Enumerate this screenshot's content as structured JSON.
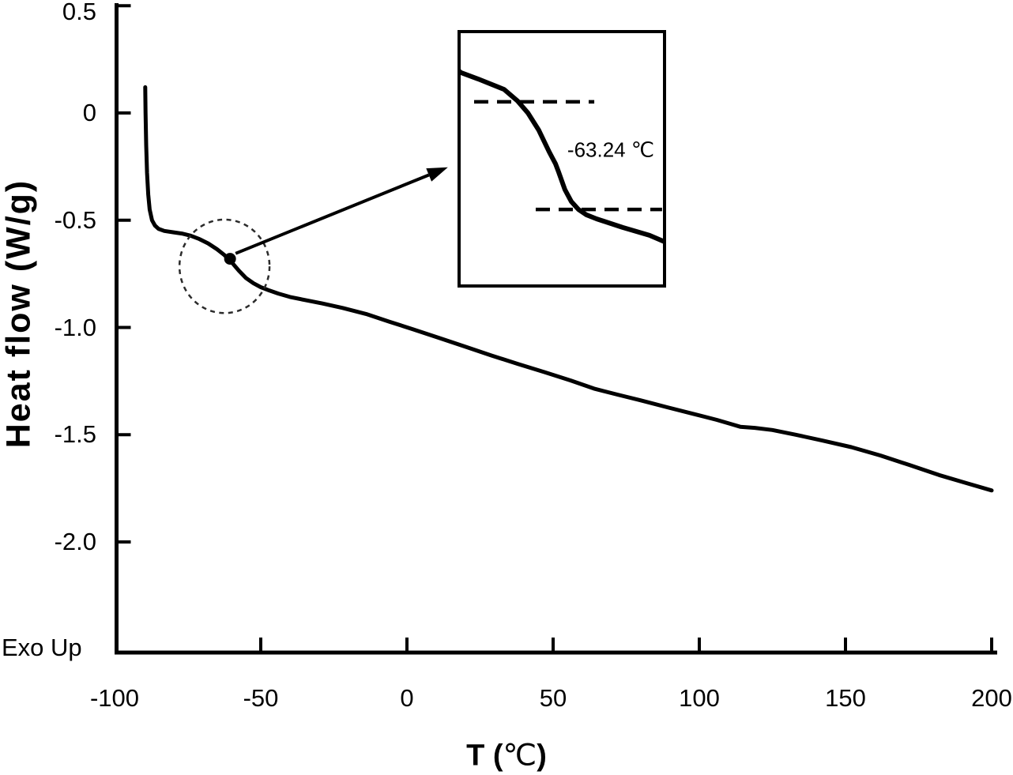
{
  "chart_data": {
    "type": "line",
    "xlabel": "T (℃)",
    "xlabel_parts": [
      "T (",
      "℃",
      ")"
    ],
    "ylabel": "Heat flow (W/g)",
    "orientation_note": "Exo Up",
    "grid": false,
    "legend": false,
    "xlim": [
      -100.5,
      201
    ],
    "ylim": [
      -2.52,
      0.52
    ],
    "x_ticks": [
      -50,
      0,
      50,
      100,
      150,
      200
    ],
    "x_tick_labels": [
      "-100",
      "-50",
      "0",
      "50",
      "100",
      "150",
      "200"
    ],
    "x_tick_label_positions": [
      -100,
      -50,
      0,
      50,
      100,
      150,
      200
    ],
    "y_ticks": [
      0.5,
      0,
      -0.5,
      -1.0,
      -1.5,
      -2.0
    ],
    "y_tick_labels": [
      "0.5",
      "0",
      "-0.5",
      "-1.0",
      "-1.5",
      "-2.0"
    ],
    "series": [
      {
        "points": [
          [
            -89.5,
            0.12
          ],
          [
            -89.4,
            0.0
          ],
          [
            -89.2,
            -0.15
          ],
          [
            -88.9,
            -0.28
          ],
          [
            -88.5,
            -0.38
          ],
          [
            -88.0,
            -0.45
          ],
          [
            -87.2,
            -0.5
          ],
          [
            -86.2,
            -0.525
          ],
          [
            -85.0,
            -0.54
          ],
          [
            -83.0,
            -0.55
          ],
          [
            -80.0,
            -0.556
          ],
          [
            -77.0,
            -0.562
          ],
          [
            -74.0,
            -0.572
          ],
          [
            -71.0,
            -0.588
          ],
          [
            -68.0,
            -0.608
          ],
          [
            -65.0,
            -0.635
          ],
          [
            -62.5,
            -0.662
          ],
          [
            -60.0,
            -0.695
          ],
          [
            -57.5,
            -0.735
          ],
          [
            -55.0,
            -0.77
          ],
          [
            -52.5,
            -0.794
          ],
          [
            -50.0,
            -0.812
          ],
          [
            -47.0,
            -0.828
          ],
          [
            -44.0,
            -0.842
          ],
          [
            -40.0,
            -0.858
          ],
          [
            -35.0,
            -0.872
          ],
          [
            -29.0,
            -0.888
          ],
          [
            -22.0,
            -0.909
          ],
          [
            -14.0,
            -0.937
          ],
          [
            -6.0,
            -0.973
          ],
          [
            2.0,
            -1.008
          ],
          [
            11.0,
            -1.049
          ],
          [
            20.0,
            -1.09
          ],
          [
            29.0,
            -1.131
          ],
          [
            38.0,
            -1.17
          ],
          [
            47.0,
            -1.208
          ],
          [
            56.0,
            -1.247
          ],
          [
            64.0,
            -1.285
          ],
          [
            72.0,
            -1.313
          ],
          [
            80.0,
            -1.34
          ],
          [
            89.0,
            -1.372
          ],
          [
            98.0,
            -1.403
          ],
          [
            106.0,
            -1.431
          ],
          [
            110.5,
            -1.449
          ],
          [
            114.0,
            -1.463
          ],
          [
            119.0,
            -1.468
          ],
          [
            125.0,
            -1.478
          ],
          [
            133.0,
            -1.5
          ],
          [
            142.0,
            -1.527
          ],
          [
            152.0,
            -1.558
          ],
          [
            162.0,
            -1.597
          ],
          [
            172.0,
            -1.642
          ],
          [
            182.0,
            -1.688
          ],
          [
            191.0,
            -1.724
          ],
          [
            200.0,
            -1.76
          ]
        ]
      }
    ],
    "glass_transition": {
      "label": "-63.24 ℃",
      "marker_point": [
        -60.5,
        -0.68
      ],
      "circle": {
        "center": [
          -62.4,
          -0.715
        ],
        "rx": 15.4,
        "ry": 0.218
      },
      "arrow": {
        "from": [
          -58.6,
          -0.655
        ],
        "to": [
          14.0,
          -0.253
        ]
      }
    },
    "inset": {
      "label": "-63.24 ℃",
      "curve_points_norm": [
        [
          0.0,
          0.155
        ],
        [
          0.008,
          0.161
        ],
        [
          0.092,
          0.186
        ],
        [
          0.219,
          0.227
        ],
        [
          0.285,
          0.273
        ],
        [
          0.335,
          0.32
        ],
        [
          0.388,
          0.388
        ],
        [
          0.438,
          0.472
        ],
        [
          0.469,
          0.519
        ],
        [
          0.485,
          0.553
        ],
        [
          0.515,
          0.621
        ],
        [
          0.546,
          0.668
        ],
        [
          0.581,
          0.699
        ],
        [
          0.619,
          0.72
        ],
        [
          0.669,
          0.736
        ],
        [
          0.796,
          0.77
        ],
        [
          0.927,
          0.801
        ],
        [
          1.0,
          0.826
        ]
      ],
      "upper_dash_norm": {
        "y": 0.276,
        "x1": 0.073,
        "x2": 0.658
      },
      "lower_dash_norm": {
        "y": 0.699,
        "x1": 0.373,
        "x2": 0.988
      }
    },
    "colors": {
      "line": "#000000",
      "background": "#ffffff",
      "dashed_circle": "#2b2b2b"
    }
  }
}
